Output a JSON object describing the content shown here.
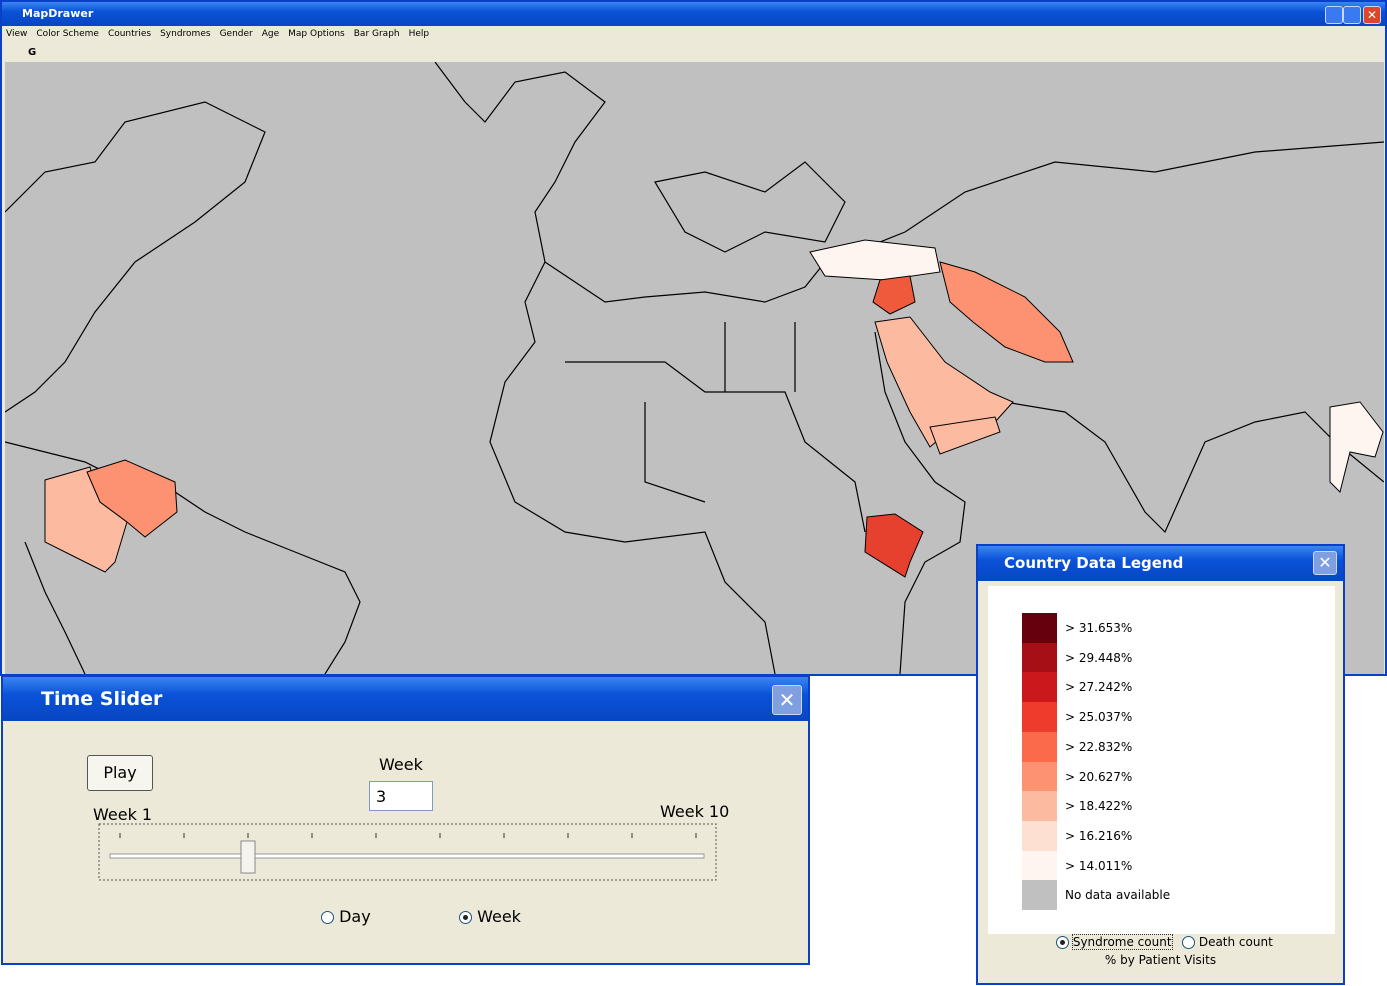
{
  "main_window": {
    "title": "MapDrawer",
    "menu": [
      "View",
      "Color Scheme",
      "Countries",
      "Syndromes",
      "Gender",
      "Age",
      "Map Options",
      "Bar Graph",
      "Help"
    ],
    "toolbar": [
      "G"
    ]
  },
  "time_slider": {
    "title": "Time Slider",
    "play_button": "Play",
    "week_label": "Week",
    "week_input": "3",
    "start_label": "Week 1",
    "end_label": "Week 10",
    "radios": [
      "Day",
      "Week"
    ]
  },
  "legend": {
    "title": "Country Data Legend",
    "items": [
      {
        "label": "> 31.653%",
        "color": "#67000d"
      },
      {
        "label": "> 29.448%",
        "color": "#a50f15"
      },
      {
        "label": "> 27.242%",
        "color": "#cb181d"
      },
      {
        "label": "> 25.037%",
        "color": "#ef3b2c"
      },
      {
        "label": "> 22.832%",
        "color": "#fb6a4a"
      },
      {
        "label": "> 20.627%",
        "color": "#fc9272"
      },
      {
        "label": "> 18.422%",
        "color": "#fcbba1"
      },
      {
        "label": "> 16.216%",
        "color": "#fee0d2"
      },
      {
        "label": "> 14.011%",
        "color": "#fff5f0"
      },
      {
        "label": "No data available",
        "color": "#c0c0c0"
      }
    ],
    "radios": [
      "Syndrome count",
      "Death count"
    ],
    "caption": "% by Patient Visits"
  }
}
